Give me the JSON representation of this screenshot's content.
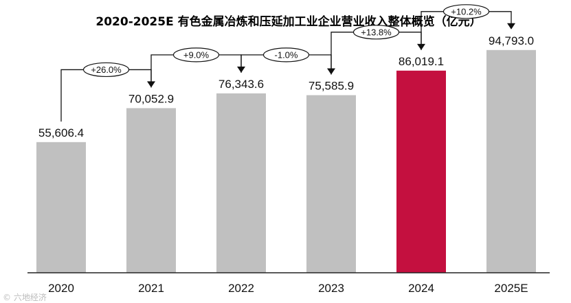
{
  "credit": "© 六地经济",
  "colors": {
    "bar": "#c0c0c0",
    "highlight": "#c4103f",
    "axis": "#222222",
    "arrow": "#111111"
  },
  "chart_data": {
    "type": "bar",
    "title": "2020-2025E  有色金属冶炼和压延加工业企业营业收入整体概览（亿元）",
    "xlabel": "",
    "ylabel": "",
    "categories": [
      "2020",
      "2021",
      "2022",
      "2023",
      "2024",
      "2025E"
    ],
    "values": [
      55606.4,
      70052.9,
      76343.6,
      75585.9,
      86019.1,
      94793.0
    ],
    "value_labels": [
      "55,606.4",
      "70,052.9",
      "76,343.6",
      "75,585.9",
      "86,019.1",
      "94,793.0"
    ],
    "highlight_index": 4,
    "growth_labels": [
      "+26.0%",
      "+9.0%",
      "-1.0%",
      "+13.8%",
      "+10.2%"
    ],
    "ylim": [
      0,
      100000
    ],
    "grid": false,
    "legend": "none"
  }
}
